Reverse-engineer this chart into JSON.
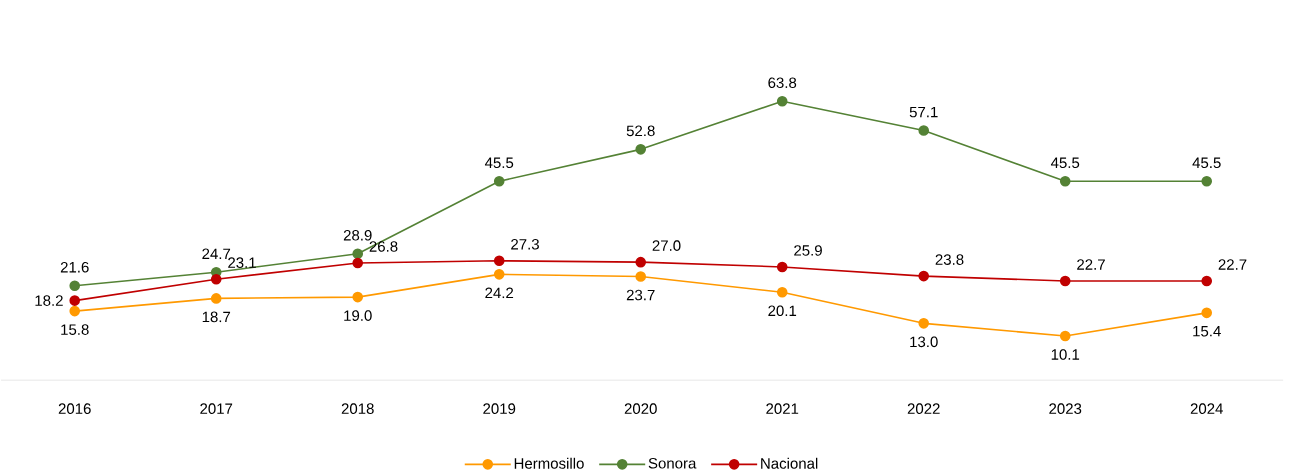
{
  "chart_data": {
    "type": "line",
    "categories": [
      "2016",
      "2017",
      "2018",
      "2019",
      "2020",
      "2021",
      "2022",
      "2023",
      "2024"
    ],
    "series": [
      {
        "name": "Hermosillo",
        "color": "#ff9900",
        "values": [
          15.8,
          18.7,
          19.0,
          24.2,
          23.7,
          20.1,
          13.0,
          10.1,
          15.4
        ],
        "value_labels": [
          "15.8",
          "18.7",
          "19.0",
          "24.2",
          "23.7",
          "20.1",
          "13.0",
          "10.1",
          "15.4"
        ]
      },
      {
        "name": "Sonora",
        "color": "#548235",
        "values": [
          21.6,
          24.7,
          28.9,
          45.5,
          52.8,
          63.8,
          57.1,
          45.5,
          45.5
        ],
        "value_labels": [
          "21.6",
          "24.7",
          "28.9",
          "45.5",
          "52.8",
          "63.8",
          "57.1",
          "45.5",
          "45.5"
        ]
      },
      {
        "name": "Nacional",
        "color": "#c00000",
        "values": [
          18.2,
          23.1,
          26.8,
          27.3,
          27.0,
          25.9,
          23.8,
          22.7,
          22.7
        ],
        "value_labels": [
          "18.2",
          "23.1",
          "26.8",
          "27.3",
          "27.0",
          "25.9",
          "23.8",
          "22.7",
          "22.7"
        ]
      }
    ],
    "tick_labels": "x",
    "legend": "bottom",
    "marker": "circle",
    "line_style": "solid"
  }
}
